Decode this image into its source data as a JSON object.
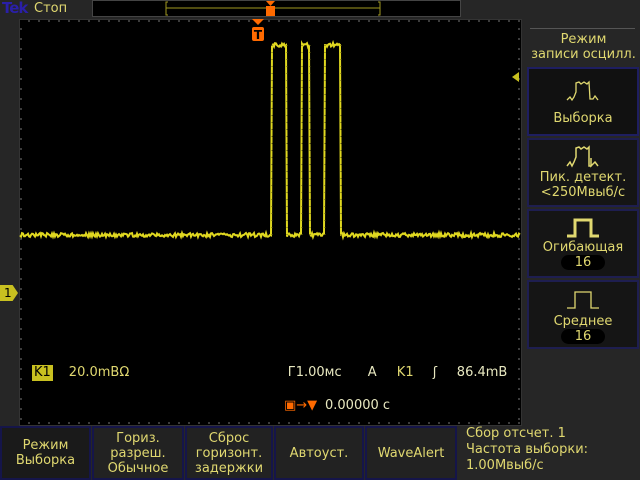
{
  "header": {
    "brand": "Tek",
    "status": "Стоп"
  },
  "readouts": {
    "channel_badge": "K1",
    "channel_scale": "20.0mВΩ",
    "timebase": "Г1.00мс",
    "trigger_source_mode": "A",
    "trigger_channel": "K1",
    "trigger_level": "86.4mВ",
    "trigger_position": "0.00000 с",
    "channel_marker": "1",
    "trigger_marker": "T"
  },
  "side_menu": {
    "title_line1": "Режим",
    "title_line2": "записи осцилл.",
    "items": [
      {
        "label": "Выборка",
        "icon": "sample-waveform-icon",
        "selected": true
      },
      {
        "label": "Пик. детект.",
        "sub": "<250Мвыб/с",
        "icon": "peak-detect-waveform-icon"
      },
      {
        "label": "Огибающая",
        "count": "16",
        "icon": "envelope-waveform-icon"
      },
      {
        "label": "Среднее",
        "count": "16",
        "icon": "average-waveform-icon"
      }
    ]
  },
  "bottom_menu": [
    {
      "l1": "Режим",
      "l2": "Выборка"
    },
    {
      "l1": "Гориз.",
      "l2": "разреш.",
      "l3": "Обычное"
    },
    {
      "l1": "Сброс",
      "l2": "горизонт.",
      "l3": "задержки"
    },
    {
      "l1": "Автоуст."
    },
    {
      "l1": "WaveAlert"
    }
  ],
  "acq_info": {
    "line1": "Сбор отсчет. 1",
    "line2": "Частота выборки:",
    "line3": "1.00Мвыб/с"
  },
  "colors": {
    "trace": "#e0d820",
    "trigger": "#ff6a00",
    "text": "#e0d870",
    "brand": "#2a1fa8"
  }
}
